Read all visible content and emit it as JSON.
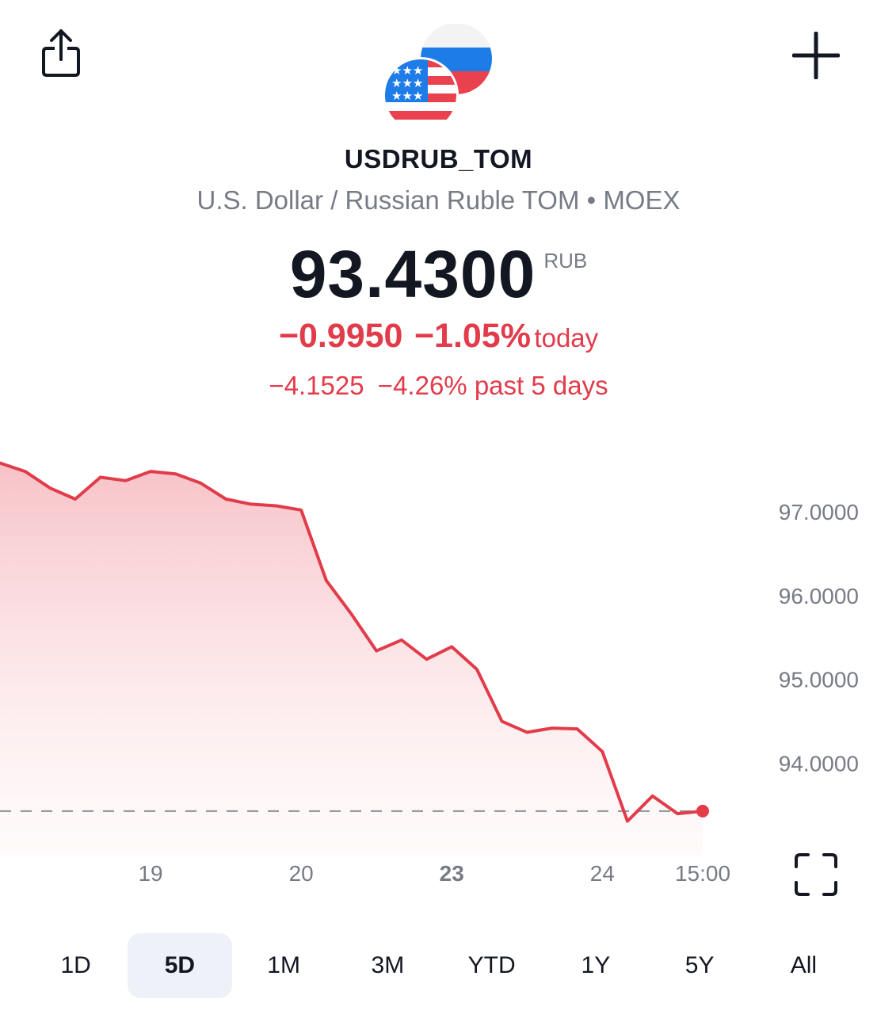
{
  "header": {
    "symbol": "USDRUB_TOM",
    "description": "U.S. Dollar / Russian Ruble TOM • MOEX",
    "share_icon": "share-icon",
    "add_icon": "plus-icon"
  },
  "quote": {
    "price": "93.4300",
    "currency": "RUB",
    "change_today": "−0.9950",
    "change_today_pct": "−1.05%",
    "today_label": "today",
    "change_5d": "−4.1525",
    "change_5d_pct": "−4.26%",
    "past_label": "past 5 days"
  },
  "colors": {
    "negative": "#e23b4a",
    "text": "#131722",
    "muted": "#787b86",
    "active_range_bg": "#eef1f8"
  },
  "chart_data": {
    "type": "area",
    "x": [
      0,
      1,
      2,
      3,
      4,
      5,
      6,
      7,
      8,
      9,
      10,
      11,
      12,
      13,
      14,
      15,
      16,
      17,
      18,
      19,
      20,
      21,
      22,
      23,
      24,
      25,
      26,
      27,
      28
    ],
    "values": [
      97.58,
      97.48,
      97.28,
      97.15,
      97.41,
      97.37,
      97.48,
      97.45,
      97.34,
      97.15,
      97.09,
      97.07,
      97.02,
      96.18,
      95.78,
      95.34,
      95.47,
      95.24,
      95.39,
      95.12,
      94.5,
      94.37,
      94.42,
      94.41,
      94.14,
      93.31,
      93.61,
      93.4,
      93.43
    ],
    "reference_line": 93.43,
    "yticks": [
      "97.0000",
      "96.0000",
      "95.0000",
      "94.0000"
    ],
    "ytick_values": [
      97,
      96,
      95,
      94
    ],
    "xticks": [
      "19",
      "20",
      "23",
      "24",
      "15:00"
    ],
    "xtick_positions": [
      6,
      12,
      18,
      24,
      28
    ],
    "ylim": [
      92.9,
      98.0
    ],
    "grid": false,
    "legend": "none"
  },
  "ranges": {
    "items": [
      "1D",
      "5D",
      "1M",
      "3M",
      "YTD",
      "1Y",
      "5Y",
      "All"
    ],
    "active": "5D"
  }
}
